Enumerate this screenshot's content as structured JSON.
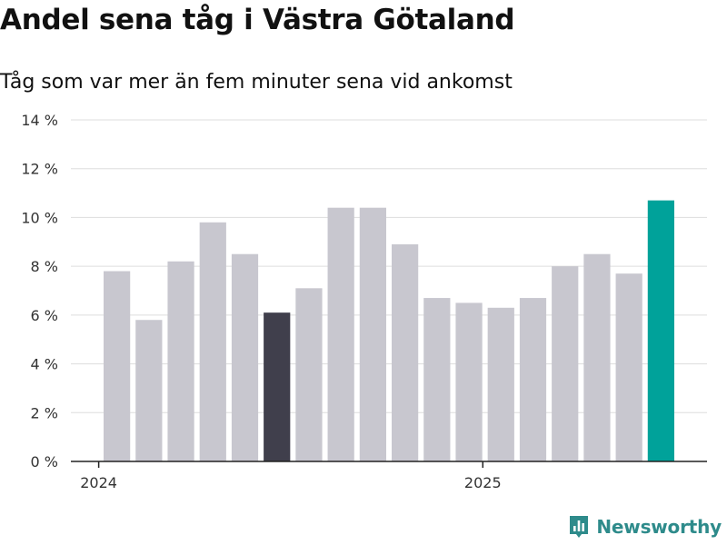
{
  "header": {
    "title": "Andel sena tåg i Västra Götaland",
    "subtitle": "Tåg som var mer än fem minuter sena vid ankomst"
  },
  "brand": {
    "name": "Newsworthy",
    "icon": "bar-chart-icon",
    "color": "#2e8b8b"
  },
  "colors": {
    "default_bar": "#c8c7cf",
    "highlight_dark": "#403f4c",
    "highlight_latest": "#00a29a",
    "grid": "#dddddd",
    "axis": "#222222"
  },
  "chart_data": {
    "type": "bar",
    "title": "Andel sena tåg i Västra Götaland",
    "subtitle": "Tåg som var mer än fem minuter sena vid ankomst",
    "categories": [
      "2024-01",
      "2024-02",
      "2024-03",
      "2024-04",
      "2024-05",
      "2024-06",
      "2024-07",
      "2024-08",
      "2024-09",
      "2024-10",
      "2024-11",
      "2024-12",
      "2025-01",
      "2025-02",
      "2025-03",
      "2025-04",
      "2025-05",
      "2025-06"
    ],
    "values": [
      7.8,
      5.8,
      8.2,
      9.8,
      8.5,
      6.1,
      7.1,
      10.4,
      10.4,
      8.9,
      6.7,
      6.5,
      6.3,
      6.7,
      8.0,
      8.5,
      7.7,
      10.7
    ],
    "highlight": {
      "2024-06": "highlight_dark",
      "2025-06": "highlight_latest"
    },
    "xticks": [
      {
        "at": "2024-01",
        "label": "2024"
      },
      {
        "at": "2025-01",
        "label": "2025"
      }
    ],
    "yticks": [
      0,
      2,
      4,
      6,
      8,
      10,
      12,
      14
    ],
    "ytick_labels": [
      "0 %",
      "2 %",
      "4 %",
      "6 %",
      "8 %",
      "10 %",
      "12 %",
      "14 %"
    ],
    "ylim": [
      0,
      14
    ],
    "xlabel": "",
    "ylabel": "",
    "grid": true,
    "legend": "none"
  }
}
